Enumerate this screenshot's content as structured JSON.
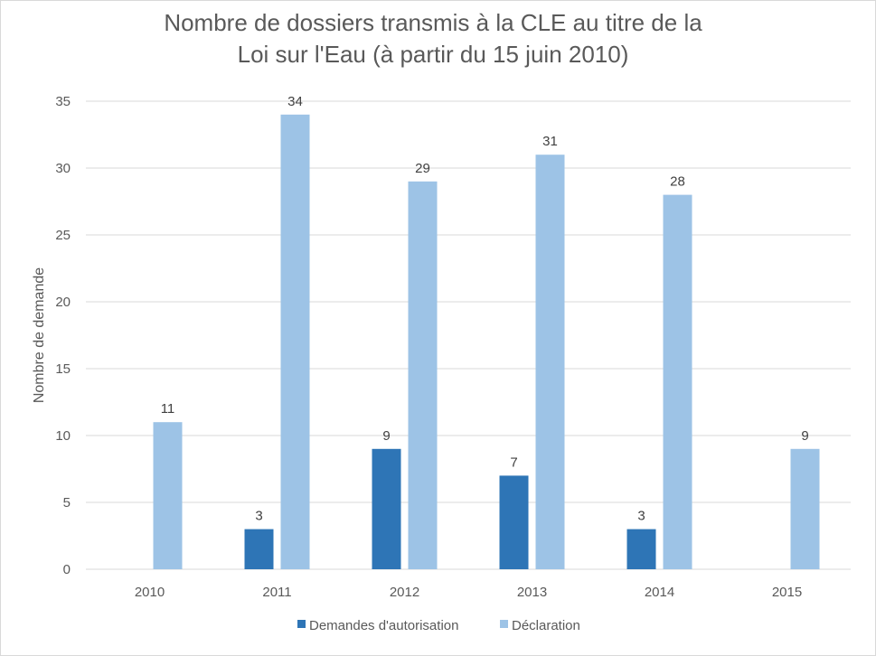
{
  "chart_data": {
    "type": "bar",
    "title_lines": [
      "Nombre de dossiers transmis à la CLE au titre de la",
      "Loi sur l'Eau (à partir du 15 juin 2010)"
    ],
    "xlabel": "",
    "ylabel": "Nombre de demande",
    "categories": [
      "2010",
      "2011",
      "2012",
      "2013",
      "2014",
      "2015"
    ],
    "series": [
      {
        "name": "Demandes d'autorisation",
        "color": "#2e75b6",
        "values": [
          0,
          3,
          9,
          7,
          3,
          0
        ],
        "labels": [
          "",
          "3",
          "9",
          "7",
          "3",
          ""
        ]
      },
      {
        "name": "Déclaration",
        "color": "#9dc3e6",
        "values": [
          11,
          34,
          29,
          31,
          28,
          9
        ],
        "labels": [
          "11",
          "34",
          "29",
          "31",
          "28",
          "9"
        ]
      }
    ],
    "ylim": [
      0,
      35
    ],
    "yticks": [
      "0",
      "5",
      "10",
      "15",
      "20",
      "25",
      "30",
      "35"
    ],
    "grid": true,
    "legend_position": "bottom",
    "gridline_color": "#d9d9d9"
  }
}
